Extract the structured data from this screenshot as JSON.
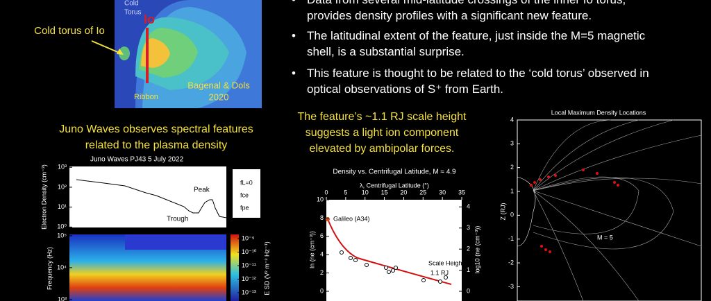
{
  "figure": {
    "cold_torus_label": "Cold torus of Io",
    "cold_label": "Cold",
    "torus_label": "Torus",
    "io_label": "Io",
    "ribbon_label": "Ribbon",
    "citation_line1": "Bagenal & Dols",
    "citation_line2": "2020"
  },
  "bullets": [
    {
      "line1": "Data from several mid-latitude crossings of the inner Io torus,",
      "line2": "provides density profiles with a significant new feature."
    },
    {
      "line1": "The latitudinal extent of the feature, just inside the M=5 magnetic",
      "line2": "shell, is a substantial surprise."
    },
    {
      "line1": "This feature is thought to be related to the ‘cold torus’ observed in",
      "line2": "optical observations of S⁺ from Earth."
    }
  ],
  "left_caption": {
    "line1": "Juno Waves observes spectral features",
    "line2": "related to the plasma density"
  },
  "middle_caption": {
    "line1": "The feature’s ~1.1 RJ scale height",
    "line2": "suggests a light ion component",
    "line3": "elevated by ambipolar forces."
  },
  "waves_chart": {
    "title": "Juno Waves   PJ43   5 July 2022",
    "peak_label": "Peak",
    "trough_label": "Trough",
    "legend": [
      "fL=0",
      "fce",
      "fpe"
    ],
    "density_axis_label": "Electron Density (cm⁻³)",
    "frequency_axis_label": "Frequency (Hz)",
    "colorbar_label": "E SD (V² m⁻² Hz⁻¹)",
    "log_scale": true,
    "density_ylim": [
      0.95,
      1100
    ],
    "density_yticks": [
      {
        "value": 1000,
        "label": "10³"
      },
      {
        "value": 100,
        "label": "10²"
      },
      {
        "value": 10,
        "label": "10¹"
      },
      {
        "value": 1,
        "label": "10⁰"
      }
    ],
    "frequency_ylim": [
      900,
      110000
    ],
    "frequency_yticks": [
      {
        "value": 100000,
        "label": "10⁵"
      },
      {
        "value": 10000,
        "label": "10⁴"
      },
      {
        "value": 1000,
        "label": "10³"
      }
    ],
    "colorbar_lim": [
      1e-13,
      1e-09
    ],
    "colorbar_ticks": [
      {
        "value": 1e-09,
        "label": "10⁻⁹"
      },
      {
        "value": 1e-10,
        "label": "10⁻¹⁰"
      },
      {
        "value": 1e-11,
        "label": "10⁻¹¹"
      },
      {
        "value": 1e-12,
        "label": "10⁻¹²"
      },
      {
        "value": 1e-13,
        "label": "10⁻¹³"
      }
    ]
  },
  "density_chart": {
    "title": "Density vs. Centrifugal Latitude, M ≈ 4.9",
    "x_label": "λ, Centrifugal Latitude (°)",
    "y_label": "ln (ne (cm⁻³))",
    "y2_label": "log10 (ne (cm⁻³))",
    "galileo_label": "Galileo (A34)",
    "scale_height_label": "Scale Height",
    "scale_height_value": "1.1 RJ",
    "xlim": [
      0,
      35
    ],
    "xticks": [
      0,
      5,
      10,
      15,
      20,
      25,
      30,
      35
    ],
    "ylim": [
      0,
      10
    ],
    "yticks": [
      0,
      2,
      4,
      6,
      8,
      10
    ],
    "y2lim": [
      0,
      4.34
    ],
    "y2ticks": [
      0,
      1,
      2,
      3,
      4
    ]
  },
  "locations_chart": {
    "title": "Local Maximum Density Locations",
    "y_label": "Z (RJ)",
    "m_label": "M = 5",
    "ylim": [
      -3.6,
      4
    ],
    "yticks": [
      4,
      3,
      2,
      1,
      0,
      -1,
      -2,
      -3
    ]
  }
}
